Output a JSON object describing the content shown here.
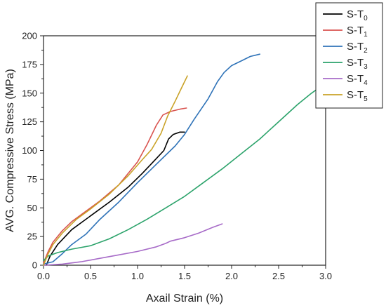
{
  "chart_data": {
    "type": "line",
    "title": "",
    "xlabel": "Axail Strain (%)",
    "ylabel": "AVG. Compressive Stress (MPa)",
    "xlim": [
      0,
      3.0
    ],
    "ylim": [
      0,
      200
    ],
    "xticks": [
      0.0,
      0.5,
      1.0,
      1.5,
      2.0,
      2.5,
      3.0
    ],
    "xtick_labels": [
      "0.0",
      "0.5",
      "1.0",
      "1.5",
      "2.0",
      "2.5",
      "3.0"
    ],
    "yticks": [
      0,
      25,
      50,
      75,
      100,
      125,
      150,
      175,
      200
    ],
    "ytick_labels": [
      "0",
      "25",
      "50",
      "75",
      "100",
      "125",
      "150",
      "175",
      "200"
    ],
    "grid": false,
    "legend_position": "top-right-outside",
    "series": [
      {
        "name": "S-T",
        "subscript": "0",
        "color": "#000000",
        "x": [
          0.03,
          0.07,
          0.15,
          0.3,
          0.5,
          0.7,
          0.9,
          1.05,
          1.2,
          1.28,
          1.33,
          1.38,
          1.45,
          1.5
        ],
        "y": [
          0,
          8,
          18,
          31,
          43,
          55,
          68,
          80,
          93,
          100,
          110,
          114,
          116,
          116
        ]
      },
      {
        "name": "S-T",
        "subscript": "1",
        "color": "#d9534f",
        "x": [
          0.0,
          0.05,
          0.1,
          0.2,
          0.3,
          0.45,
          0.6,
          0.8,
          1.0,
          1.1,
          1.2,
          1.27,
          1.35,
          1.45,
          1.52
        ],
        "y": [
          2,
          12,
          20,
          30,
          38,
          47,
          56,
          70,
          90,
          105,
          122,
          131,
          134,
          136,
          137
        ]
      },
      {
        "name": "S-T",
        "subscript": "2",
        "color": "#2f73b8",
        "x": [
          0.0,
          0.1,
          0.2,
          0.3,
          0.45,
          0.6,
          0.8,
          1.0,
          1.2,
          1.4,
          1.5,
          1.6,
          1.75,
          1.85,
          1.92,
          2.0,
          2.1,
          2.2,
          2.25,
          2.3
        ],
        "y": [
          1,
          3,
          10,
          18,
          27,
          40,
          55,
          72,
          88,
          104,
          114,
          127,
          145,
          160,
          168,
          174,
          178,
          182,
          183,
          184
        ]
      },
      {
        "name": "S-T",
        "subscript": "3",
        "color": "#2ca36b",
        "x": [
          0.0,
          0.05,
          0.15,
          0.3,
          0.5,
          0.7,
          0.9,
          1.1,
          1.3,
          1.5,
          1.7,
          1.9,
          2.1,
          2.3,
          2.5,
          2.7,
          2.85,
          2.97
        ],
        "y": [
          4,
          8,
          11,
          14,
          17,
          23,
          31,
          40,
          50,
          60,
          72,
          84,
          97,
          110,
          125,
          140,
          150,
          157
        ]
      },
      {
        "name": "S-T",
        "subscript": "4",
        "color": "#a76bc8",
        "x": [
          0.0,
          0.2,
          0.4,
          0.6,
          0.8,
          1.0,
          1.2,
          1.3,
          1.35,
          1.5,
          1.65,
          1.8,
          1.9
        ],
        "y": [
          0,
          1,
          3,
          6,
          9,
          12,
          16,
          19,
          21,
          24,
          28,
          33,
          36
        ]
      },
      {
        "name": "S-T",
        "subscript": "5",
        "color": "#c9a227",
        "x": [
          0.0,
          0.05,
          0.1,
          0.2,
          0.35,
          0.5,
          0.7,
          0.9,
          1.05,
          1.15,
          1.25,
          1.32,
          1.4,
          1.47,
          1.53
        ],
        "y": [
          0,
          10,
          18,
          28,
          40,
          49,
          62,
          78,
          92,
          101,
          115,
          130,
          143,
          155,
          165
        ]
      }
    ]
  }
}
